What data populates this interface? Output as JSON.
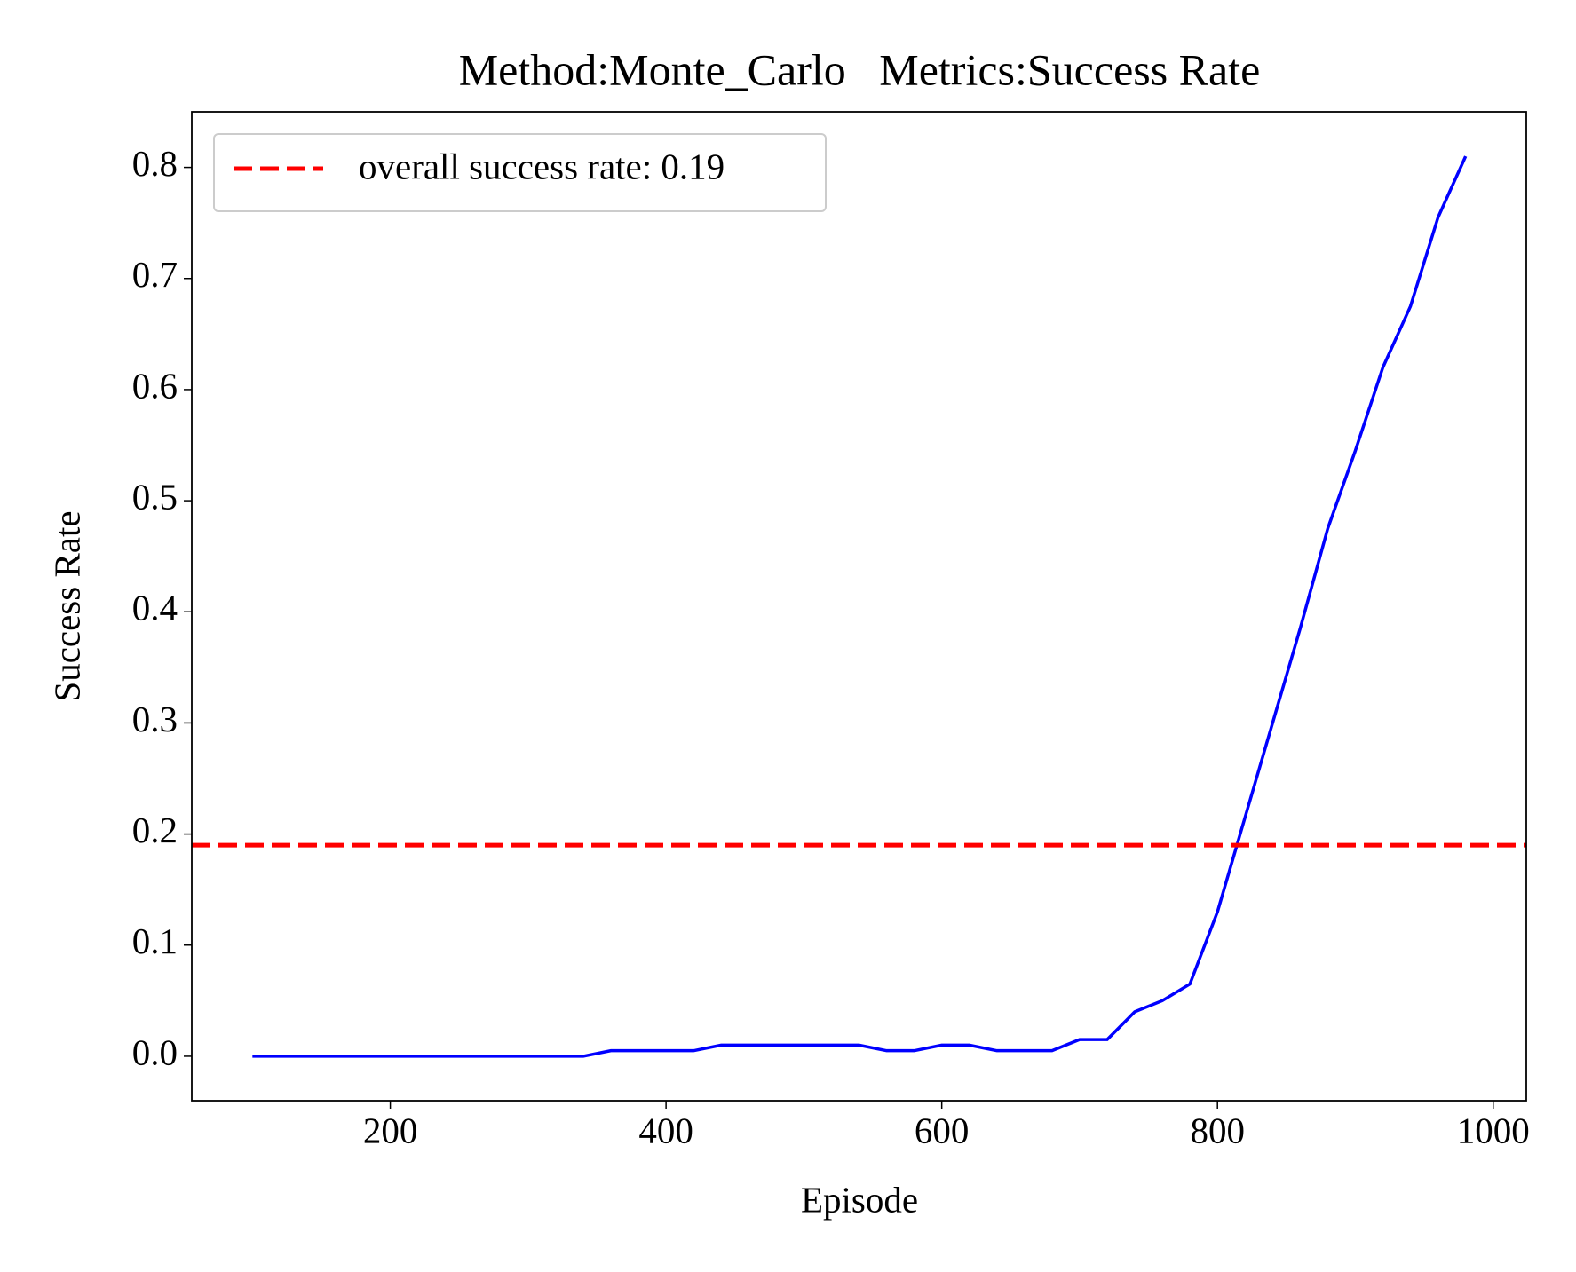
{
  "chart_data": {
    "type": "line",
    "title": "Method:Monte_Carlo   Metrics:Success Rate",
    "x_label": "Episode",
    "y_label": "Success Rate",
    "x": [
      100,
      120,
      140,
      160,
      180,
      200,
      220,
      240,
      260,
      280,
      300,
      320,
      340,
      360,
      380,
      400,
      420,
      440,
      460,
      480,
      500,
      520,
      540,
      560,
      580,
      600,
      620,
      640,
      660,
      680,
      700,
      720,
      740,
      760,
      780,
      800,
      820,
      840,
      860,
      880,
      900,
      920,
      940,
      960,
      980
    ],
    "series": [
      {
        "name": "success rate",
        "color": "#0000ff",
        "values": [
          0,
          0,
          0,
          0,
          0,
          0,
          0,
          0,
          0,
          0,
          0,
          0,
          0,
          0.005,
          0.005,
          0.005,
          0.005,
          0.01,
          0.01,
          0.01,
          0.01,
          0.01,
          0.01,
          0.005,
          0.005,
          0.01,
          0.01,
          0.005,
          0.005,
          0.005,
          0.015,
          0.015,
          0.04,
          0.05,
          0.065,
          0.13,
          0.215,
          0.3,
          0.385,
          0.475,
          0.545,
          0.62,
          0.675,
          0.755,
          0.81
        ]
      }
    ],
    "hline": {
      "name": "overall success rate: 0.19",
      "value": 0.19,
      "color": "#ff0000"
    },
    "xlim": [
      56,
      1024
    ],
    "ylim": [
      -0.04,
      0.85
    ],
    "xticks": [
      200,
      400,
      600,
      800,
      1000
    ],
    "yticks": [
      {
        "value": 0,
        "label": "0.0"
      },
      0.1,
      0.2,
      0.3,
      0.4,
      0.5,
      0.6,
      0.7,
      0.8
    ],
    "legend": "upper left"
  }
}
